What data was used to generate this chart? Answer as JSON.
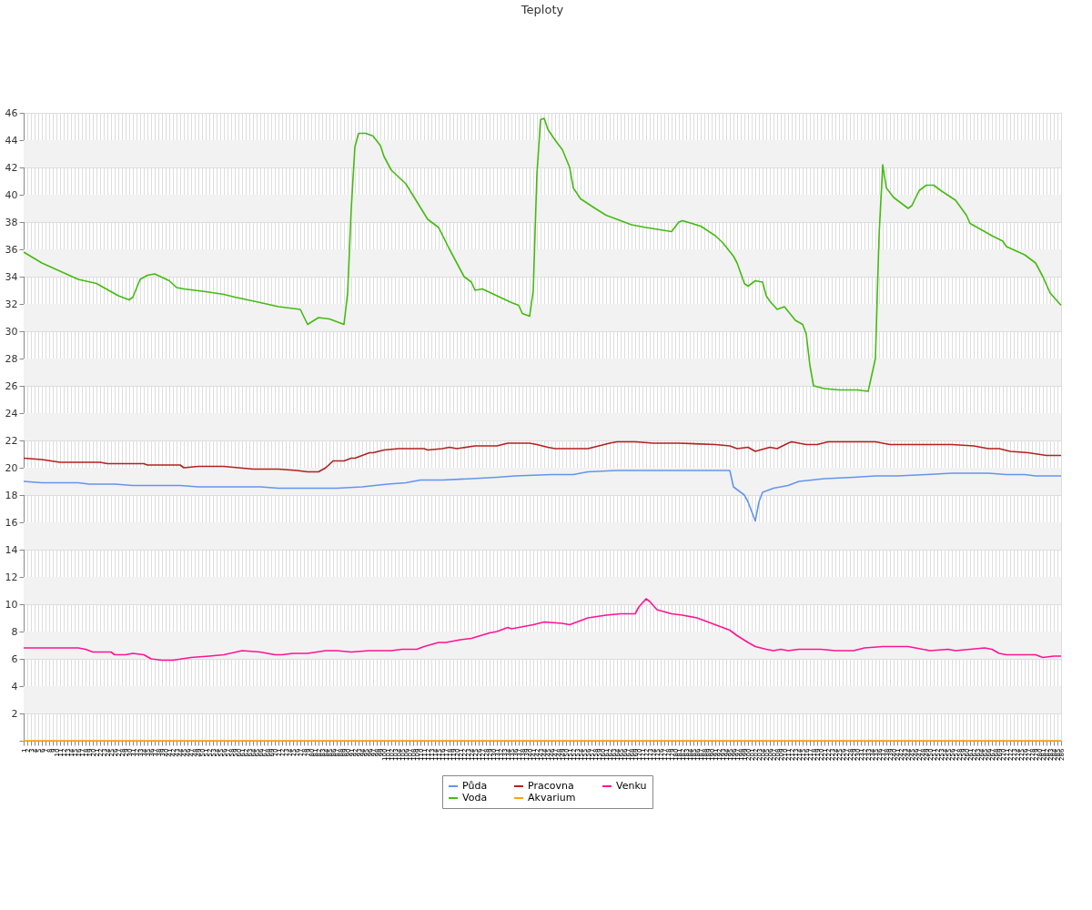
{
  "chart_data": {
    "type": "line",
    "title": "Teploty",
    "legend": "bottom",
    "grid": true,
    "marker": "none",
    "line_style": "solid",
    "xlim": [
      1,
      286
    ],
    "xticks": [
      1,
      2,
      3,
      4,
      5,
      6,
      7,
      8,
      9,
      10,
      11,
      12,
      13,
      14,
      15,
      16,
      17,
      18,
      19,
      20,
      21,
      22,
      23,
      24,
      25,
      26,
      27,
      28,
      29,
      30,
      31,
      32,
      33,
      34,
      35,
      36,
      37,
      38,
      39,
      40,
      41,
      42,
      43,
      44,
      45,
      46,
      47,
      48,
      49,
      50,
      51,
      52,
      53,
      54,
      55,
      56,
      57,
      58,
      59,
      60,
      61,
      62,
      63,
      64,
      65,
      66,
      67,
      68,
      69,
      70,
      71,
      72,
      73,
      74,
      75,
      76,
      77,
      78,
      79,
      80,
      81,
      82,
      83,
      84,
      85,
      86,
      87,
      88,
      89,
      90,
      91,
      92,
      93,
      94,
      95,
      96,
      97,
      98,
      99,
      100,
      101,
      102,
      103,
      104,
      105,
      106,
      107,
      108,
      109,
      110,
      111,
      112,
      113,
      114,
      115,
      116,
      117,
      118,
      119,
      120,
      121,
      122,
      123,
      124,
      125,
      126,
      127,
      128,
      129,
      130,
      131,
      132,
      133,
      134,
      135,
      136,
      137,
      138,
      139,
      140,
      141,
      142,
      143,
      144,
      145,
      146,
      147,
      148,
      149,
      150,
      151,
      152,
      153,
      154,
      155,
      156,
      157,
      158,
      159,
      160,
      161,
      162,
      163,
      164,
      165,
      166,
      167,
      168,
      169,
      170,
      171,
      172,
      173,
      174,
      175,
      176,
      177,
      178,
      179,
      180,
      181,
      182,
      183,
      184,
      185,
      186,
      187,
      188,
      189,
      190,
      191,
      192,
      193,
      194,
      195,
      196,
      197,
      198,
      199,
      200,
      201,
      202,
      203,
      204,
      205,
      206,
      207,
      208,
      209,
      210,
      211,
      212,
      213,
      214,
      215,
      216,
      217,
      218,
      219,
      220,
      221,
      222,
      223,
      224,
      225,
      226,
      227,
      228,
      229,
      230,
      231,
      232,
      233,
      234,
      235,
      236,
      237,
      238,
      239,
      240,
      241,
      242,
      243,
      244,
      245,
      246,
      247,
      248,
      249,
      250,
      251,
      252,
      253,
      254,
      255,
      256,
      257,
      258,
      259,
      260,
      261,
      262,
      263,
      264,
      265,
      266,
      267,
      268,
      269,
      270,
      271,
      272,
      273,
      274,
      275,
      276,
      277,
      278,
      279,
      280,
      281,
      282,
      283,
      284,
      285,
      286
    ],
    "ylim": [
      0,
      46
    ],
    "yticks": [
      {
        "value": 0,
        "label": null
      },
      2,
      4,
      6,
      8,
      10,
      12,
      14,
      16,
      18,
      20,
      22,
      24,
      26,
      28,
      30,
      32,
      34,
      36,
      38,
      40,
      42,
      44,
      46
    ],
    "bands": [
      {
        "axis": "y",
        "from": 2,
        "to": 4,
        "color": "#f2f2f2"
      },
      {
        "axis": "y",
        "from": 6,
        "to": 8,
        "color": "#f2f2f2"
      },
      {
        "axis": "y",
        "from": 10,
        "to": 12,
        "color": "#f2f2f2"
      },
      {
        "axis": "y",
        "from": 14,
        "to": 16,
        "color": "#f2f2f2"
      },
      {
        "axis": "y",
        "from": 18,
        "to": 20,
        "color": "#f2f2f2"
      },
      {
        "axis": "y",
        "from": 22,
        "to": 24,
        "color": "#f2f2f2"
      },
      {
        "axis": "y",
        "from": 26,
        "to": 28,
        "color": "#f2f2f2"
      },
      {
        "axis": "y",
        "from": 30,
        "to": 32,
        "color": "#f2f2f2"
      },
      {
        "axis": "y",
        "from": 34,
        "to": 36,
        "color": "#f2f2f2"
      },
      {
        "axis": "y",
        "from": 38,
        "to": 40,
        "color": "#f2f2f2"
      },
      {
        "axis": "y",
        "from": 42,
        "to": 44,
        "color": "#f2f2f2"
      }
    ],
    "series": [
      {
        "name": "Půda",
        "color": "#6495ed",
        "x": [
          1,
          6,
          16,
          19,
          26,
          31,
          44,
          49,
          66,
          71,
          84,
          87,
          94,
          101,
          106,
          110,
          116,
          124,
          131,
          136,
          146,
          152,
          156,
          164,
          170,
          195,
          196,
          199,
          200,
          202,
          203,
          204,
          207,
          211,
          214,
          221,
          229,
          235,
          241,
          249,
          256,
          266,
          271,
          276,
          279,
          286
        ],
        "values": [
          19.0,
          18.9,
          18.9,
          18.8,
          18.8,
          18.7,
          18.7,
          18.6,
          18.6,
          18.5,
          18.5,
          18.5,
          18.6,
          18.8,
          18.9,
          19.1,
          19.1,
          19.2,
          19.3,
          19.4,
          19.5,
          19.5,
          19.7,
          19.8,
          19.8,
          19.8,
          18.6,
          18.0,
          17.5,
          16.1,
          17.5,
          18.2,
          18.5,
          18.7,
          19.0,
          19.2,
          19.3,
          19.4,
          19.4,
          19.5,
          19.6,
          19.6,
          19.5,
          19.5,
          19.4,
          19.4
        ]
      },
      {
        "name": "Voda",
        "color": "#44bb11",
        "x": [
          1,
          6,
          16,
          21,
          27,
          30,
          31,
          33,
          35,
          37,
          41,
          43,
          45,
          51,
          56,
          59,
          66,
          71,
          77,
          79,
          82,
          85,
          89,
          90,
          91,
          92,
          93,
          95,
          97,
          99,
          100,
          102,
          106,
          109,
          112,
          115,
          118,
          120,
          122,
          124,
          125,
          127,
          131,
          135,
          137,
          138,
          140,
          141,
          142,
          143,
          144,
          145,
          147,
          149,
          151,
          152,
          154,
          158,
          161,
          166,
          168,
          172,
          179,
          181,
          182,
          187,
          191,
          193,
          196,
          197,
          199,
          200,
          202,
          204,
          205,
          206,
          208,
          210,
          213,
          215,
          216,
          217,
          218,
          221,
          225,
          230,
          233,
          235,
          236,
          237,
          238,
          240,
          242,
          244,
          245,
          247,
          249,
          251,
          253,
          257,
          260,
          261,
          263,
          267,
          270,
          271,
          276,
          279,
          281,
          283,
          286
        ],
        "values": [
          35.8,
          35.0,
          33.8,
          33.5,
          32.6,
          32.3,
          32.5,
          33.8,
          34.1,
          34.2,
          33.7,
          33.2,
          33.1,
          32.9,
          32.7,
          32.5,
          32.1,
          31.8,
          31.6,
          30.5,
          31.0,
          30.9,
          30.5,
          32.8,
          39.0,
          43.5,
          44.5,
          44.5,
          44.3,
          43.6,
          42.8,
          41.8,
          40.8,
          39.5,
          38.2,
          37.6,
          36.0,
          35.0,
          34.0,
          33.6,
          33.0,
          33.1,
          32.6,
          32.1,
          31.9,
          31.3,
          31.1,
          33.0,
          41.5,
          45.5,
          45.6,
          44.8,
          44.0,
          43.3,
          42.0,
          40.5,
          39.7,
          39.0,
          38.5,
          38.0,
          37.8,
          37.6,
          37.3,
          38.0,
          38.1,
          37.7,
          37.0,
          36.5,
          35.5,
          35.0,
          33.5,
          33.3,
          33.7,
          33.6,
          32.6,
          32.2,
          31.6,
          31.8,
          30.8,
          30.5,
          29.8,
          27.5,
          26.0,
          25.8,
          25.7,
          25.7,
          25.6,
          28.0,
          37.0,
          42.2,
          40.5,
          39.8,
          39.4,
          39.0,
          39.2,
          40.3,
          40.7,
          40.7,
          40.3,
          39.6,
          38.5,
          37.9,
          37.6,
          37.0,
          36.6,
          36.2,
          35.6,
          35.0,
          34.0,
          32.8,
          31.9
        ]
      },
      {
        "name": "Pracovna",
        "color": "#b22222",
        "x": [
          1,
          6,
          11,
          22,
          24,
          34,
          35,
          44,
          45,
          49,
          56,
          64,
          71,
          76,
          79,
          82,
          84,
          86,
          89,
          91,
          92,
          94,
          96,
          97,
          100,
          104,
          111,
          112,
          116,
          118,
          120,
          125,
          131,
          134,
          140,
          142,
          145,
          147,
          151,
          156,
          159,
          162,
          164,
          169,
          174,
          181,
          191,
          195,
          197,
          200,
          202,
          206,
          208,
          211,
          212,
          214,
          216,
          219,
          222,
          235,
          239,
          246,
          256,
          262,
          266,
          269,
          272,
          277,
          282,
          286
        ],
        "values": [
          20.7,
          20.6,
          20.4,
          20.4,
          20.3,
          20.3,
          20.2,
          20.2,
          20.0,
          20.1,
          20.1,
          19.9,
          19.9,
          19.8,
          19.7,
          19.7,
          20.0,
          20.5,
          20.5,
          20.7,
          20.7,
          20.9,
          21.1,
          21.1,
          21.3,
          21.4,
          21.4,
          21.3,
          21.4,
          21.5,
          21.4,
          21.6,
          21.6,
          21.8,
          21.8,
          21.7,
          21.5,
          21.4,
          21.4,
          21.4,
          21.6,
          21.8,
          21.9,
          21.9,
          21.8,
          21.8,
          21.7,
          21.6,
          21.4,
          21.5,
          21.2,
          21.5,
          21.4,
          21.8,
          21.9,
          21.8,
          21.7,
          21.7,
          21.9,
          21.9,
          21.7,
          21.7,
          21.7,
          21.6,
          21.4,
          21.4,
          21.2,
          21.1,
          20.9,
          20.9
        ]
      },
      {
        "name": "Akvarium",
        "color": "#ffa500",
        "x": [
          1,
          286
        ],
        "values": [
          0,
          0
        ]
      },
      {
        "name": "Venku",
        "color": "#ff1493",
        "x": [
          1,
          16,
          18,
          20,
          25,
          26,
          29,
          31,
          34,
          36,
          39,
          42,
          47,
          52,
          56,
          61,
          66,
          70,
          72,
          75,
          79,
          84,
          87,
          91,
          96,
          102,
          105,
          109,
          111,
          115,
          117,
          121,
          124,
          129,
          131,
          134,
          135,
          137,
          141,
          144,
          149,
          151,
          154,
          156,
          161,
          165,
          169,
          170,
          172,
          173,
          175,
          179,
          182,
          186,
          189,
          192,
          195,
          197,
          200,
          202,
          205,
          207,
          209,
          211,
          214,
          220,
          224,
          229,
          232,
          237,
          244,
          250,
          255,
          257,
          261,
          265,
          267,
          269,
          271,
          275,
          279,
          281,
          284,
          286
        ],
        "values": [
          6.8,
          6.8,
          6.7,
          6.5,
          6.5,
          6.3,
          6.3,
          6.4,
          6.3,
          6.0,
          5.9,
          5.9,
          6.1,
          6.2,
          6.3,
          6.6,
          6.5,
          6.3,
          6.3,
          6.4,
          6.4,
          6.6,
          6.6,
          6.5,
          6.6,
          6.6,
          6.7,
          6.7,
          6.9,
          7.2,
          7.2,
          7.4,
          7.5,
          7.9,
          8.0,
          8.3,
          8.2,
          8.3,
          8.5,
          8.7,
          8.6,
          8.5,
          8.8,
          9.0,
          9.2,
          9.3,
          9.3,
          9.8,
          10.4,
          10.2,
          9.6,
          9.3,
          9.2,
          9.0,
          8.7,
          8.4,
          8.1,
          7.7,
          7.2,
          6.9,
          6.7,
          6.6,
          6.7,
          6.6,
          6.7,
          6.7,
          6.6,
          6.6,
          6.8,
          6.9,
          6.9,
          6.6,
          6.7,
          6.6,
          6.7,
          6.8,
          6.7,
          6.4,
          6.3,
          6.3,
          6.3,
          6.1,
          6.2,
          6.2
        ]
      }
    ]
  }
}
